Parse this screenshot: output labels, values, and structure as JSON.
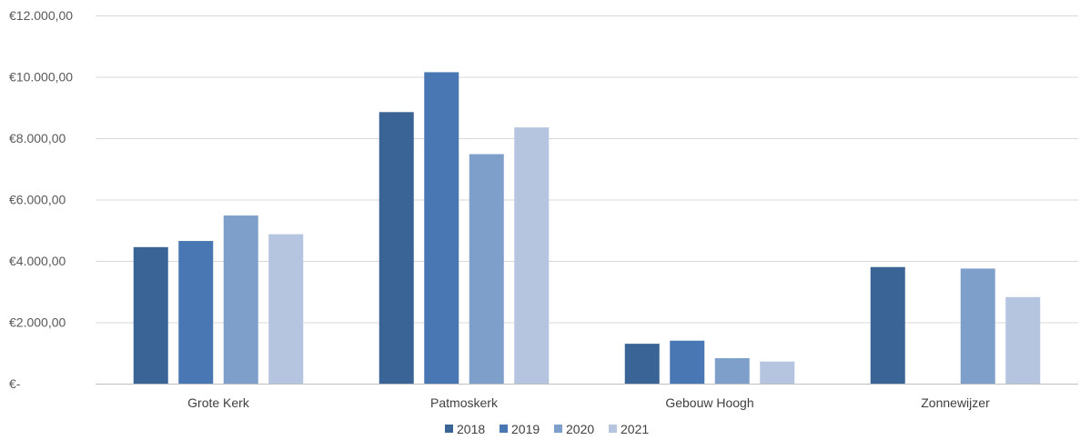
{
  "chart_data": {
    "type": "bar",
    "title": "",
    "xlabel": "",
    "ylabel": "",
    "categories": [
      "Grote Kerk",
      "Patmoskerk",
      "Gebouw Hoogh",
      "Zonnewijzer"
    ],
    "series": [
      {
        "name": "2018",
        "color": "#3b6496",
        "values": [
          4450,
          8850,
          1300,
          3800
        ]
      },
      {
        "name": "2019",
        "color": "#4977b3",
        "values": [
          4650,
          10150,
          1400,
          null
        ]
      },
      {
        "name": "2020",
        "color": "#7f9fcb",
        "values": [
          5480,
          7480,
          830,
          3750
        ]
      },
      {
        "name": "2021",
        "color": "#b5c4df",
        "values": [
          4870,
          8350,
          720,
          2820
        ]
      }
    ],
    "ylim": [
      0,
      12000
    ],
    "yticks": [
      0,
      2000,
      4000,
      6000,
      8000,
      10000,
      12000
    ],
    "ytick_labels": [
      "€-",
      "€2.000,00",
      "€4.000,00",
      "€6.000,00",
      "€8.000,00",
      "€10.000,00",
      "€12.000,00"
    ],
    "grid": true,
    "legend_position": "bottom"
  }
}
